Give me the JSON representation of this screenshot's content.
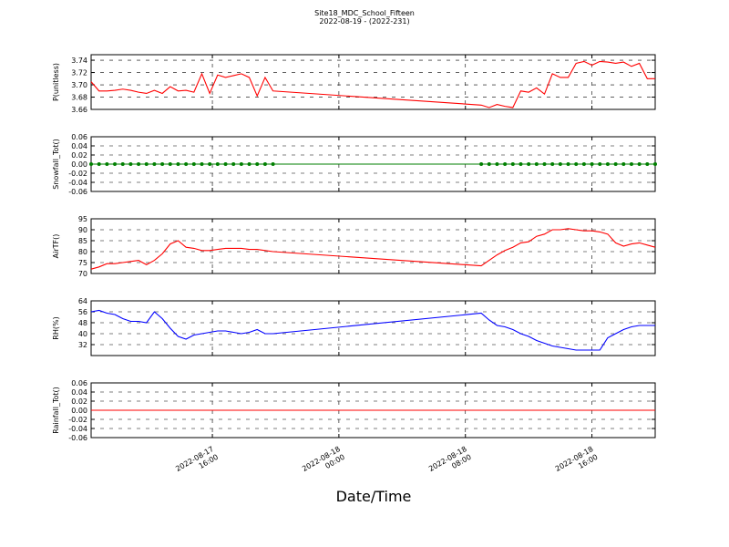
{
  "chart_data": {
    "type": "line",
    "title": "Site18_MDC_School_Fifteen",
    "subtitle": "2022-08-19 - (2022-231)",
    "x_label": "Date/Time",
    "xlim": [
      "2022-08-17 08:20",
      "2022-08-18 20:00"
    ],
    "xticks": [
      {
        "value": "2022-08-17 16:00",
        "label": [
          "2022-08-17",
          "16:00"
        ]
      },
      {
        "value": "2022-08-18 00:00",
        "label": [
          "2022-08-18",
          "00:00"
        ]
      },
      {
        "value": "2022-08-18 08:00",
        "label": [
          "2022-08-18",
          "08:00"
        ]
      },
      {
        "value": "2022-08-18 16:00",
        "label": [
          "2022-08-18",
          "16:00"
        ]
      }
    ],
    "grid": true,
    "x": [
      "2022-08-17 08:20",
      "2022-08-17 08:50",
      "2022-08-17 09:20",
      "2022-08-17 09:50",
      "2022-08-17 10:20",
      "2022-08-17 10:50",
      "2022-08-17 11:20",
      "2022-08-17 11:50",
      "2022-08-17 12:20",
      "2022-08-17 12:50",
      "2022-08-17 13:20",
      "2022-08-17 13:50",
      "2022-08-17 14:20",
      "2022-08-17 14:50",
      "2022-08-17 15:20",
      "2022-08-17 15:50",
      "2022-08-17 16:20",
      "2022-08-17 16:50",
      "2022-08-17 17:20",
      "2022-08-17 17:50",
      "2022-08-17 18:20",
      "2022-08-17 18:50",
      "2022-08-17 19:20",
      "2022-08-17 19:50",
      "2022-08-18 09:00",
      "2022-08-18 09:30",
      "2022-08-18 10:00",
      "2022-08-18 10:30",
      "2022-08-18 11:00",
      "2022-08-18 11:30",
      "2022-08-18 12:00",
      "2022-08-18 12:30",
      "2022-08-18 13:00",
      "2022-08-18 13:30",
      "2022-08-18 14:00",
      "2022-08-18 14:30",
      "2022-08-18 15:00",
      "2022-08-18 15:30",
      "2022-08-18 16:00",
      "2022-08-18 16:30",
      "2022-08-18 17:00",
      "2022-08-18 17:30",
      "2022-08-18 18:00",
      "2022-08-18 18:30",
      "2022-08-18 19:00",
      "2022-08-18 19:30",
      "2022-08-18 20:00"
    ],
    "panels": [
      {
        "y_label": "P(unitless)",
        "color": "#ff0000",
        "markers": false,
        "ylim": [
          3.66,
          3.749
        ],
        "yticks": [
          3.66,
          3.68,
          {
            "value": 3.7,
            "label": "3.70"
          },
          3.72,
          3.74
        ],
        "values": [
          3.705,
          3.69,
          3.69,
          3.691,
          3.693,
          3.691,
          3.688,
          3.686,
          3.691,
          3.686,
          3.697,
          3.69,
          3.691,
          3.688,
          3.718,
          3.686,
          3.716,
          3.712,
          3.715,
          3.718,
          3.712,
          3.682,
          3.712,
          3.69,
          3.667,
          3.663,
          3.668,
          3.665,
          3.663,
          3.69,
          3.688,
          3.695,
          3.685,
          3.718,
          3.712,
          3.712,
          3.735,
          3.738,
          3.732,
          3.738,
          3.737,
          3.735,
          3.737,
          3.73,
          3.735,
          3.71,
          3.71
        ]
      },
      {
        "y_label": "Snowfall_Tot()",
        "color": "#007f00",
        "markers": true,
        "ylim": [
          -0.06,
          0.06
        ],
        "yticks": [
          -0.06,
          -0.04,
          -0.02,
          {
            "value": 0,
            "label": "0.00"
          },
          0.02,
          0.04,
          0.06
        ],
        "values": [
          0,
          0,
          0,
          0,
          0,
          0,
          0,
          0,
          0,
          0,
          0,
          0,
          0,
          0,
          0,
          0,
          0,
          0,
          0,
          0,
          0,
          0,
          0,
          0,
          0,
          0,
          0,
          0,
          0,
          0,
          0,
          0,
          0,
          0,
          0,
          0,
          0,
          0,
          0,
          0,
          0,
          0,
          0,
          0,
          0,
          0,
          0
        ]
      },
      {
        "y_label": "AirTF()",
        "color": "#ff0000",
        "markers": false,
        "ylim": [
          70,
          95
        ],
        "yticks": [
          70,
          75,
          80,
          85,
          90,
          95
        ],
        "values": [
          72,
          73,
          74.5,
          74.5,
          75,
          75.5,
          76,
          74,
          76,
          79,
          83.5,
          85,
          82,
          81.5,
          80.5,
          80.5,
          81,
          81.5,
          81.5,
          81.5,
          81,
          81,
          80.5,
          80,
          73.5,
          76,
          78.5,
          80.5,
          82,
          84,
          84.5,
          87,
          88,
          90,
          90,
          90.5,
          90,
          89.5,
          89.5,
          89,
          88,
          84,
          82.5,
          83.5,
          84,
          83,
          82
        ]
      },
      {
        "y_label": "RH(%)",
        "color": "#0000ff",
        "markers": false,
        "ylim": [
          24,
          64
        ],
        "yticks": [
          32,
          40,
          48,
          56,
          64
        ],
        "values": [
          56,
          57,
          55,
          54,
          51,
          49,
          49,
          48,
          56,
          51,
          44,
          38,
          36,
          39,
          40,
          41,
          42,
          42,
          41,
          40,
          41,
          43,
          40,
          40,
          55,
          50,
          46,
          45,
          43,
          40,
          38,
          35,
          33,
          31,
          30,
          29,
          28,
          28,
          28,
          28,
          37,
          40,
          43,
          45,
          46,
          46,
          46
        ]
      },
      {
        "y_label": "Rainfall_Tot()",
        "color": "#ff0000",
        "markers": false,
        "ylim": [
          -0.06,
          0.06
        ],
        "yticks": [
          -0.06,
          -0.04,
          -0.02,
          {
            "value": 0,
            "label": "0.00"
          },
          0.02,
          0.04,
          0.06
        ],
        "values": [
          0,
          0,
          0,
          0,
          0,
          0,
          0,
          0,
          0,
          0,
          0,
          0,
          0,
          0,
          0,
          0,
          0,
          0,
          0,
          0,
          0,
          0,
          0,
          0,
          0,
          0,
          0,
          0,
          0,
          0,
          0,
          0,
          0,
          0,
          0,
          0,
          0,
          0,
          0,
          0,
          0,
          0,
          0,
          0,
          0,
          0,
          0
        ]
      }
    ]
  }
}
